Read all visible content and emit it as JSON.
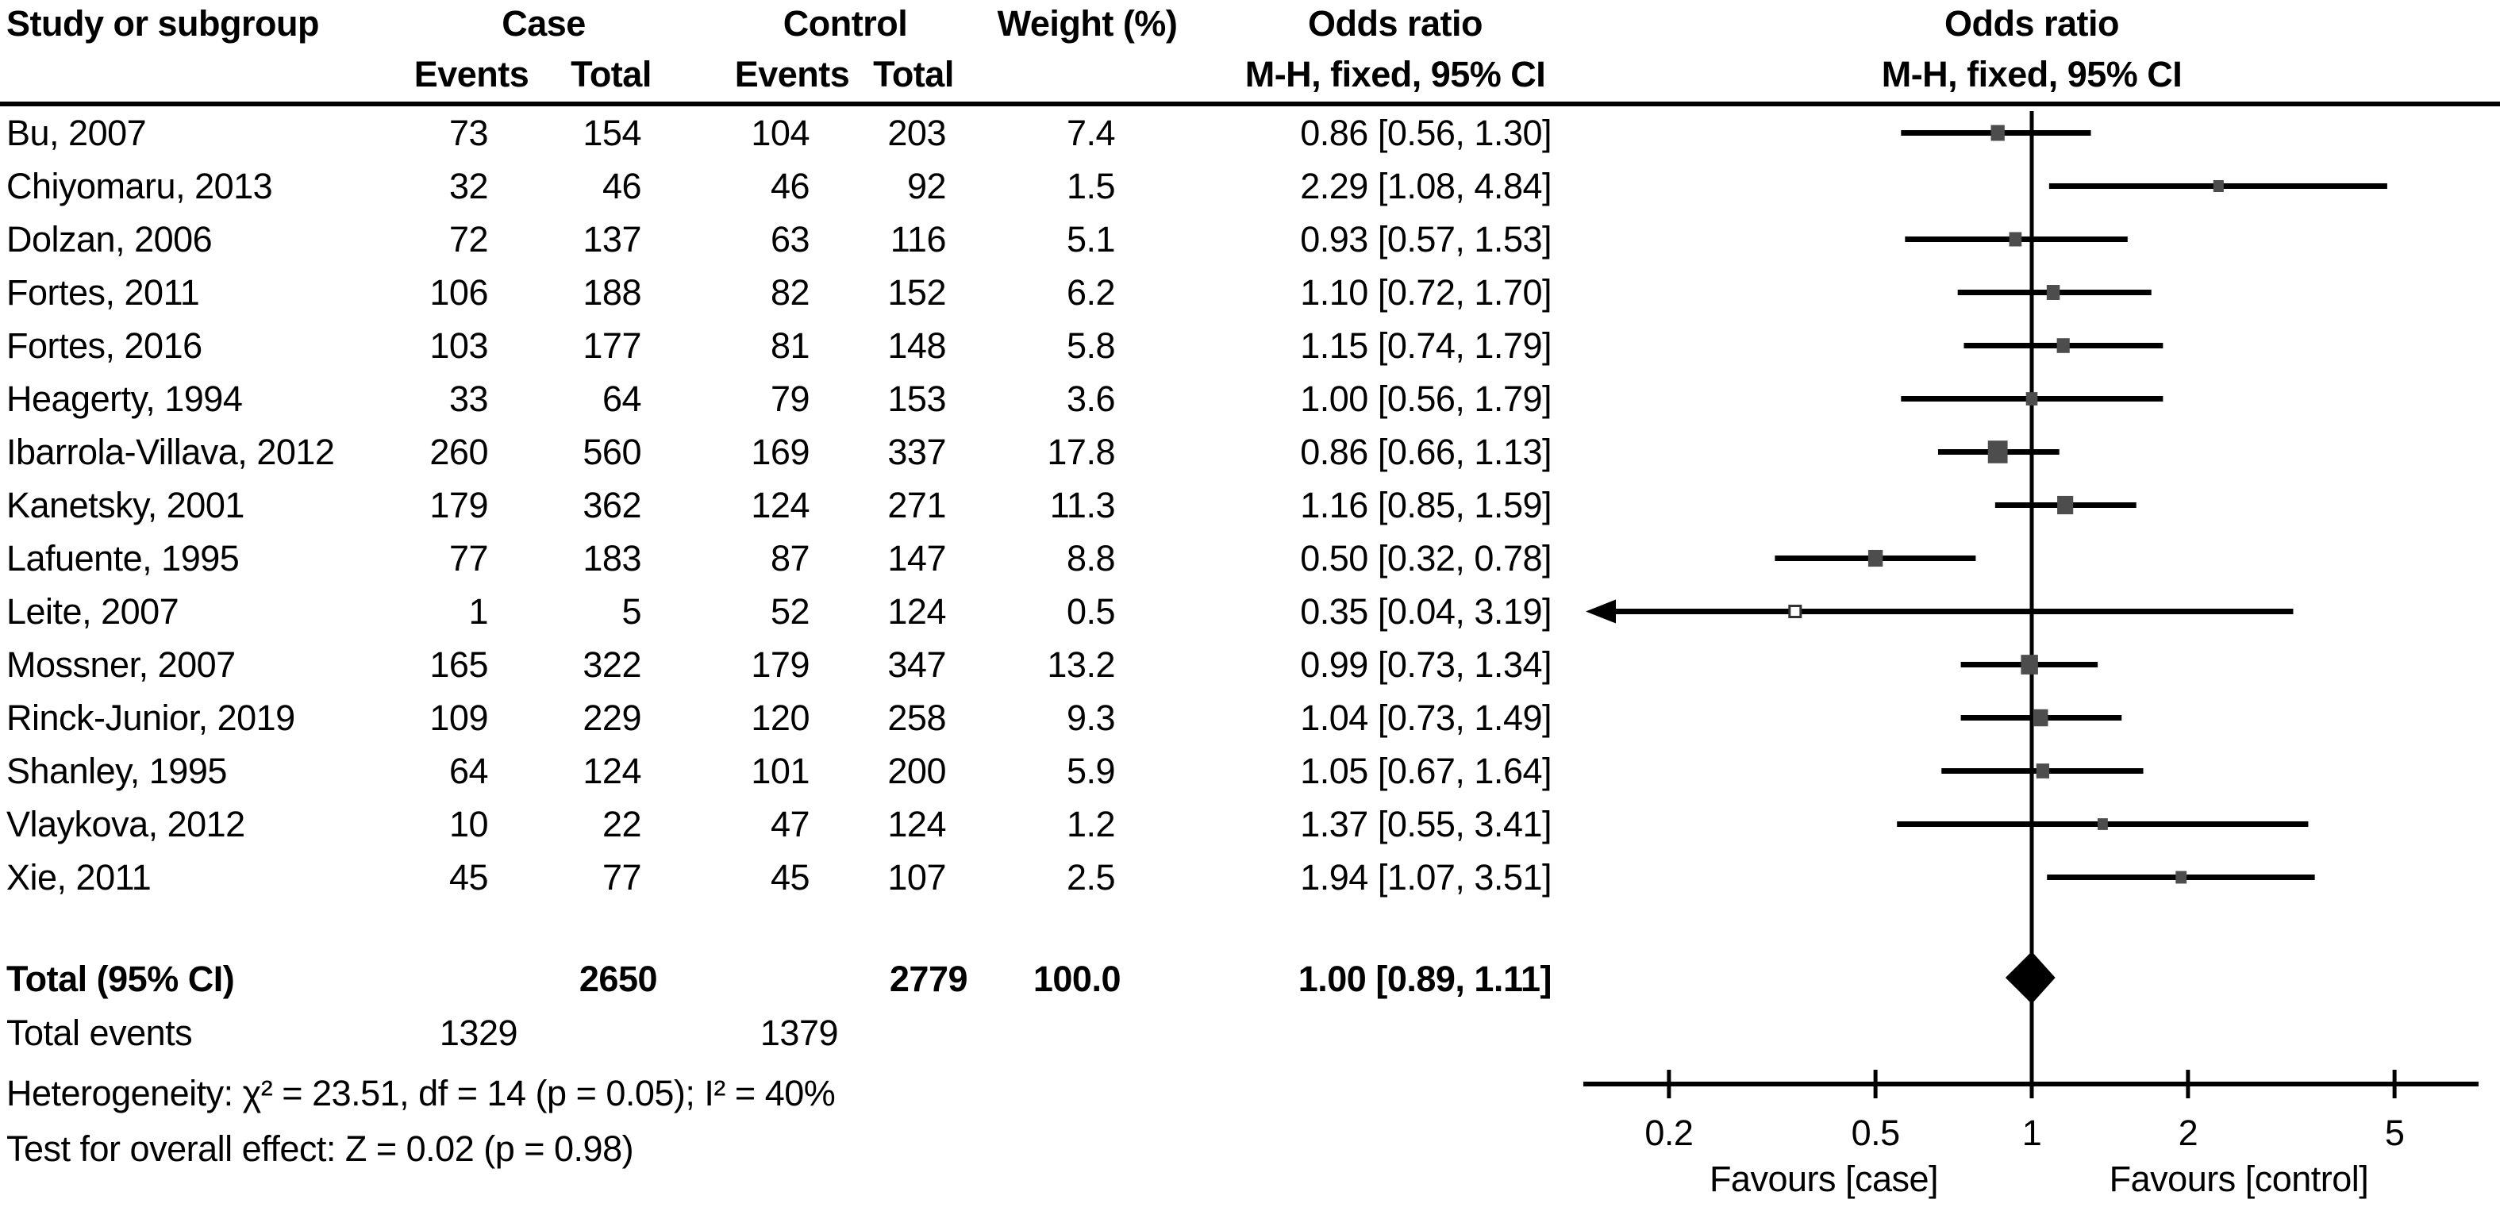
{
  "header": {
    "study": "Study or subgroup",
    "case": "Case",
    "control": "Control",
    "weight": "Weight (%)",
    "odds_ratio": "Odds ratio",
    "events": "Events",
    "total": "Total",
    "mh": "M-H, fixed, 95% CI"
  },
  "chart_data": {
    "type": "forest",
    "x_scale": "log10",
    "x_range": [
      0.13,
      7.3
    ],
    "null_line": 1,
    "ticks": [
      {
        "label": "0.2",
        "value": 0.2
      },
      {
        "label": "0.5",
        "value": 0.5
      },
      {
        "label": "1",
        "value": 1
      },
      {
        "label": "2",
        "value": 2
      },
      {
        "label": "5",
        "value": 5
      }
    ],
    "favours_left": "Favours [case]",
    "favours_right": "Favours [control]",
    "marker_color": "#4d4d4d",
    "studies": [
      {
        "label": "Bu, 2007",
        "case_events": "73",
        "case_total": "154",
        "control_events": "104",
        "control_total": "203",
        "weight": "7.4",
        "or_text": "0.86 [0.56, 1.30]",
        "or": 0.86,
        "ci_low": 0.56,
        "ci_high": 1.3
      },
      {
        "label": "Chiyomaru, 2013",
        "case_events": "32",
        "case_total": "46",
        "control_events": "46",
        "control_total": "92",
        "weight": "1.5",
        "or_text": "2.29 [1.08, 4.84]",
        "or": 2.29,
        "ci_low": 1.08,
        "ci_high": 4.84
      },
      {
        "label": "Dolzan, 2006",
        "case_events": "72",
        "case_total": "137",
        "control_events": "63",
        "control_total": "116",
        "weight": "5.1",
        "or_text": "0.93 [0.57, 1.53]",
        "or": 0.93,
        "ci_low": 0.57,
        "ci_high": 1.53
      },
      {
        "label": "Fortes, 2011",
        "case_events": "106",
        "case_total": "188",
        "control_events": "82",
        "control_total": "152",
        "weight": "6.2",
        "or_text": "1.10 [0.72, 1.70]",
        "or": 1.1,
        "ci_low": 0.72,
        "ci_high": 1.7
      },
      {
        "label": "Fortes, 2016",
        "case_events": "103",
        "case_total": "177",
        "control_events": "81",
        "control_total": "148",
        "weight": "5.8",
        "or_text": "1.15 [0.74, 1.79]",
        "or": 1.15,
        "ci_low": 0.74,
        "ci_high": 1.79
      },
      {
        "label": "Heagerty, 1994",
        "case_events": "33",
        "case_total": "64",
        "control_events": "79",
        "control_total": "153",
        "weight": "3.6",
        "or_text": "1.00 [0.56, 1.79]",
        "or": 1.0,
        "ci_low": 0.56,
        "ci_high": 1.79
      },
      {
        "label": "Ibarrola-Villava, 2012",
        "case_events": "260",
        "case_total": "560",
        "control_events": "169",
        "control_total": "337",
        "weight": "17.8",
        "or_text": "0.86 [0.66, 1.13]",
        "or": 0.86,
        "ci_low": 0.66,
        "ci_high": 1.13
      },
      {
        "label": "Kanetsky, 2001",
        "case_events": "179",
        "case_total": "362",
        "control_events": "124",
        "control_total": "271",
        "weight": "11.3",
        "or_text": "1.16 [0.85, 1.59]",
        "or": 1.16,
        "ci_low": 0.85,
        "ci_high": 1.59
      },
      {
        "label": "Lafuente, 1995",
        "case_events": "77",
        "case_total": "183",
        "control_events": "87",
        "control_total": "147",
        "weight": "8.8",
        "or_text": "0.50 [0.32, 0.78]",
        "or": 0.5,
        "ci_low": 0.32,
        "ci_high": 0.78
      },
      {
        "label": "Leite, 2007",
        "case_events": "1",
        "case_total": "5",
        "control_events": "52",
        "control_total": "124",
        "weight": "0.5",
        "or_text": "0.35 [0.04, 3.19]",
        "or": 0.35,
        "ci_low": 0.04,
        "ci_high": 3.19,
        "marker": "open"
      },
      {
        "label": "Mossner, 2007",
        "case_events": "165",
        "case_total": "322",
        "control_events": "179",
        "control_total": "347",
        "weight": "13.2",
        "or_text": "0.99 [0.73, 1.34]",
        "or": 0.99,
        "ci_low": 0.73,
        "ci_high": 1.34
      },
      {
        "label": "Rinck-Junior, 2019",
        "case_events": "109",
        "case_total": "229",
        "control_events": "120",
        "control_total": "258",
        "weight": "9.3",
        "or_text": "1.04 [0.73, 1.49]",
        "or": 1.04,
        "ci_low": 0.73,
        "ci_high": 1.49
      },
      {
        "label": "Shanley, 1995",
        "case_events": "64",
        "case_total": "124",
        "control_events": "101",
        "control_total": "200",
        "weight": "5.9",
        "or_text": "1.05 [0.67, 1.64]",
        "or": 1.05,
        "ci_low": 0.67,
        "ci_high": 1.64
      },
      {
        "label": "Vlaykova, 2012",
        "case_events": "10",
        "case_total": "22",
        "control_events": "47",
        "control_total": "124",
        "weight": "1.2",
        "or_text": "1.37 [0.55, 3.41]",
        "or": 1.37,
        "ci_low": 0.55,
        "ci_high": 3.41
      },
      {
        "label": "Xie, 2011",
        "case_events": "45",
        "case_total": "77",
        "control_events": "45",
        "control_total": "107",
        "weight": "2.5",
        "or_text": "1.94 [1.07, 3.51]",
        "or": 1.94,
        "ci_low": 1.07,
        "ci_high": 3.51
      }
    ],
    "total": {
      "label": "Total (95% CI)",
      "case_total": "2650",
      "control_total": "2779",
      "weight": "100.0",
      "or_text": "1.00 [0.89, 1.11]",
      "or": 1.0,
      "ci_low": 0.89,
      "ci_high": 1.11
    },
    "total_events": {
      "label": "Total events",
      "case": "1329",
      "control": "1379"
    },
    "heterogeneity": "Heterogeneity: χ² = 23.51, df = 14 (p = 0.05); I² = 40%",
    "overall_effect": "Test for overall effect: Z = 0.02 (p = 0.98)"
  }
}
